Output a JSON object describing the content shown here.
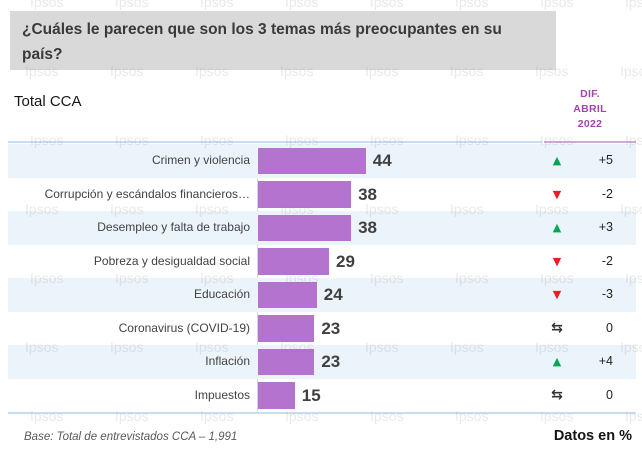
{
  "page": {
    "question_title": "¿Cuáles le parecen que son los 3 temas más preocupantes en su país?",
    "subtitle": "Total CCA",
    "diff_header": [
      "DIF.",
      "ABRIL",
      "2022"
    ],
    "footer_base": "Base: Total de entrevistados CCA – 1,991",
    "footer_units": "Datos en %",
    "watermark": "Ipsos"
  },
  "icons": {
    "up": "▲",
    "down": "▼",
    "flat": "⇆"
  },
  "colors": {
    "bar": "#b573d0",
    "row_alt": "#ecf4fb",
    "title_box": "#d9d9d9",
    "diff_header_text": "#a444ae",
    "up": "#00a651",
    "down": "#ed1c24",
    "border_blue": "#c9ddf2"
  },
  "chart_data": {
    "type": "bar",
    "orientation": "horizontal",
    "title": "¿Cuáles le parecen que son los 3 temas más preocupantes en su país?",
    "subtitle": "Total CCA",
    "units": "%",
    "xlim": [
      0,
      47
    ],
    "grid": false,
    "categories": [
      "Crimen y violencia",
      "Corrupción y escándalos financieros…",
      "Desempleo y falta de trabajo",
      "Pobreza y desigualdad social",
      "Educación",
      "Coronavirus (COVID-19)",
      "Inflación",
      "Impuestos"
    ],
    "values": [
      44,
      38,
      38,
      29,
      24,
      23,
      23,
      15
    ],
    "diff_series_name": "DIF. ABRIL 2022",
    "diff_labels": [
      "+5",
      "-2",
      "+3",
      "-2",
      "-3",
      "0",
      "+4",
      "0"
    ],
    "diff_directions": [
      "up",
      "down",
      "up",
      "down",
      "down",
      "flat",
      "up",
      "flat"
    ]
  }
}
